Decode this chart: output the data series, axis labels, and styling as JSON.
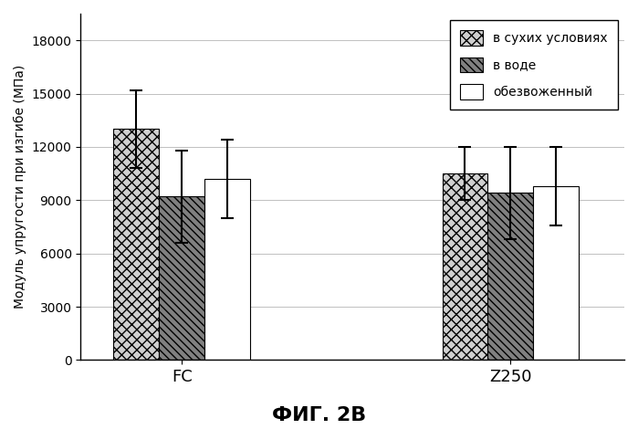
{
  "groups": [
    "FC",
    "Z250"
  ],
  "series": [
    {
      "label": "в сухих условиях",
      "values": [
        13000,
        10500
      ],
      "errors": [
        2200,
        1500
      ],
      "hatch": "xxx",
      "facecolor": "#d0d0d0",
      "edgecolor": "#000000"
    },
    {
      "label": "в воде",
      "values": [
        9200,
        9400
      ],
      "errors": [
        2600,
        2600
      ],
      "hatch": "\\\\\\\\",
      "facecolor": "#808080",
      "edgecolor": "#000000"
    },
    {
      "label": "обезвоженный",
      "values": [
        10200,
        9800
      ],
      "errors": [
        2200,
        2200
      ],
      "hatch": "",
      "facecolor": "#ffffff",
      "edgecolor": "#000000"
    }
  ],
  "ylabel": "Модуль упругости при изгибе (МПа)",
  "ylim": [
    0,
    19500
  ],
  "yticks": [
    0,
    3000,
    6000,
    9000,
    12000,
    15000,
    18000
  ],
  "bar_width": 0.18,
  "caption": "ФИГ. 2В",
  "background_color": "#ffffff"
}
